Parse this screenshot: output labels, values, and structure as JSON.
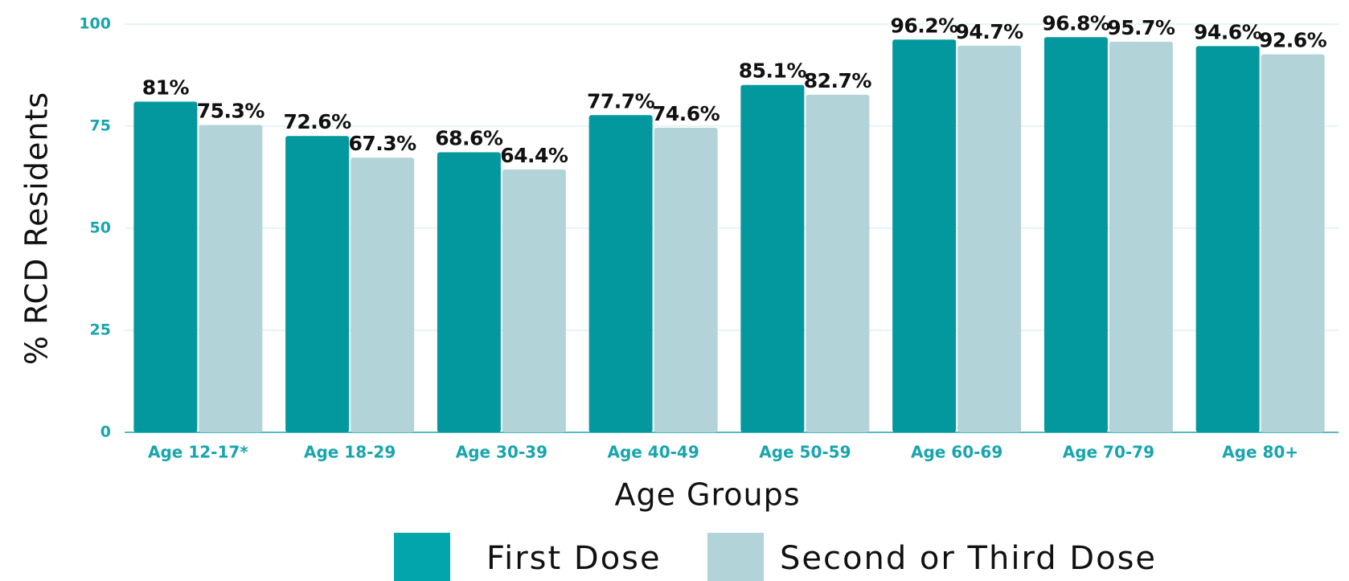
{
  "chart_data": {
    "type": "bar",
    "x_label": "Age Groups",
    "y_label": "% RCD Residents",
    "categories": [
      "Age 12-17*",
      "Age 18-29",
      "Age 30-39",
      "Age 40-49",
      "Age 50-59",
      "Age 60-69",
      "Age 70-79",
      "Age 80+"
    ],
    "series": [
      {
        "name": "First Dose",
        "color": "#03989e",
        "values": [
          81,
          72.6,
          68.6,
          77.7,
          85.1,
          96.2,
          96.8,
          94.6
        ],
        "value_labels": [
          "81%",
          "72.6%",
          "68.6%",
          "77.7%",
          "85.1%",
          "96.2%",
          "96.8%",
          "94.6%"
        ]
      },
      {
        "name": "Second or Third Dose",
        "color": "#b2d3d8",
        "values": [
          75.3,
          67.3,
          64.4,
          74.6,
          82.7,
          94.7,
          95.7,
          92.6
        ],
        "value_labels": [
          "75.3%",
          "67.3%",
          "64.4%",
          "74.6%",
          "82.7%",
          "94.7%",
          "95.7%",
          "92.6%"
        ]
      }
    ],
    "ylim": [
      0,
      100
    ],
    "yticks": [
      0,
      25,
      50,
      75,
      100
    ],
    "grid": true
  }
}
